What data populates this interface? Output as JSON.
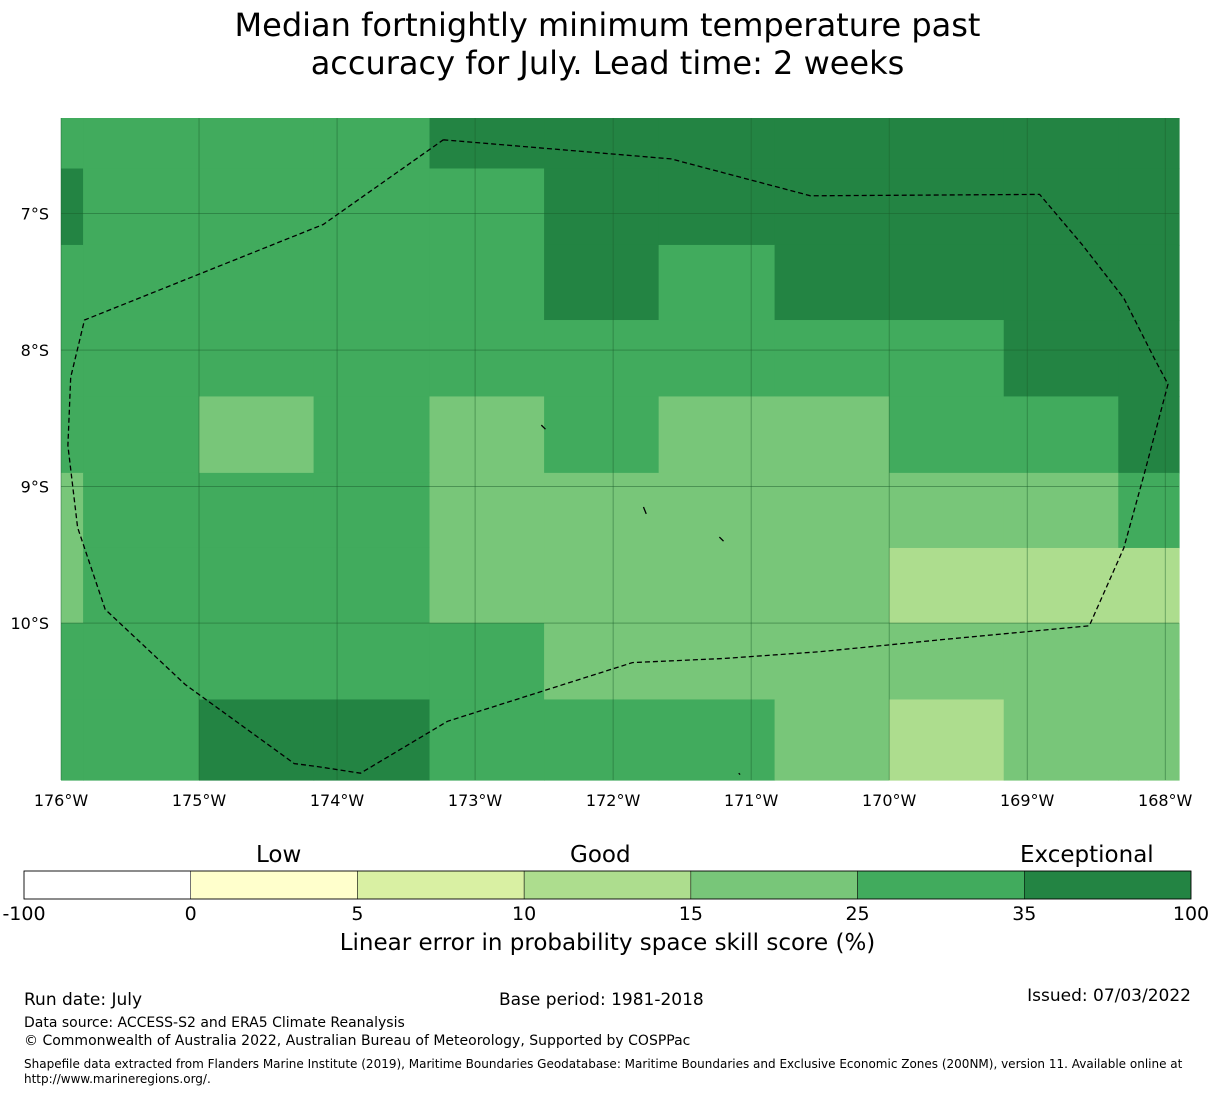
{
  "title": {
    "line1": "Median fortnightly minimum temperature past",
    "line2": "accuracy for July. Lead time: 2 weeks"
  },
  "map": {
    "lon_range": [
      -176,
      -167.9
    ],
    "lat_range": [
      -11.15,
      -6.3
    ],
    "lon_ticks": [
      {
        "value": -176,
        "label": "176°W"
      },
      {
        "value": -175,
        "label": "175°W"
      },
      {
        "value": -174,
        "label": "174°W"
      },
      {
        "value": -173,
        "label": "173°W"
      },
      {
        "value": -172,
        "label": "172°W"
      },
      {
        "value": -171,
        "label": "171°W"
      },
      {
        "value": -170,
        "label": "170°W"
      },
      {
        "value": -169,
        "label": "169°W"
      },
      {
        "value": -168,
        "label": "168°W"
      }
    ],
    "lat_ticks": [
      {
        "value": -7,
        "label": "7°S"
      },
      {
        "value": -8,
        "label": "8°S"
      },
      {
        "value": -9,
        "label": "9°S"
      },
      {
        "value": -10,
        "label": "10°S"
      }
    ],
    "grid_lines": true,
    "grid_cells_col_edges_lon": [
      -176,
      -175.84,
      -175,
      -174.17,
      -173.33,
      -172.5,
      -171.67,
      -170.83,
      -170,
      -169.17,
      -168.34,
      -167.9
    ],
    "grid_cells_row_edges_lat": [
      -6.3,
      -6.67,
      -7.23,
      -7.78,
      -8.34,
      -8.9,
      -9.45,
      -10.0,
      -10.56,
      -11.15
    ],
    "skill_class_grid": [
      [
        "25-35",
        "25-35",
        "25-35",
        "25-35",
        "35-100",
        "35-100",
        "35-100",
        "35-100",
        "35-100",
        "35-100",
        "35-100"
      ],
      [
        "35-100",
        "25-35",
        "25-35",
        "25-35",
        "25-35",
        "35-100",
        "35-100",
        "35-100",
        "35-100",
        "35-100",
        "35-100"
      ],
      [
        "25-35",
        "25-35",
        "25-35",
        "25-35",
        "25-35",
        "35-100",
        "25-35",
        "35-100",
        "35-100",
        "35-100",
        "35-100"
      ],
      [
        "25-35",
        "25-35",
        "25-35",
        "25-35",
        "25-35",
        "25-35",
        "25-35",
        "25-35",
        "25-35",
        "35-100",
        "35-100"
      ],
      [
        "25-35",
        "25-35",
        "15-25",
        "25-35",
        "15-25",
        "25-35",
        "15-25",
        "15-25",
        "25-35",
        "25-35",
        "35-100"
      ],
      [
        "15-25",
        "25-35",
        "25-35",
        "25-35",
        "15-25",
        "15-25",
        "15-25",
        "15-25",
        "15-25",
        "15-25",
        "25-35"
      ],
      [
        "15-25",
        "25-35",
        "25-35",
        "25-35",
        "15-25",
        "15-25",
        "15-25",
        "15-25",
        "10-15",
        "10-15",
        "10-15"
      ],
      [
        "25-35",
        "25-35",
        "25-35",
        "25-35",
        "25-35",
        "15-25",
        "15-25",
        "15-25",
        "15-25",
        "15-25",
        "15-25"
      ],
      [
        "25-35",
        "25-35",
        "35-100",
        "35-100",
        "25-35",
        "25-35",
        "25-35",
        "15-25",
        "10-15",
        "15-25",
        "15-25"
      ]
    ],
    "eez_boundary_lonlat": [
      [
        -173.23,
        -6.46
      ],
      [
        -171.58,
        -6.6
      ],
      [
        -170.57,
        -6.87
      ],
      [
        -168.91,
        -6.86
      ],
      [
        -168.6,
        -7.23
      ],
      [
        -168.3,
        -7.62
      ],
      [
        -168.08,
        -8.06
      ],
      [
        -167.98,
        -8.25
      ],
      [
        -168.15,
        -8.9
      ],
      [
        -168.3,
        -9.45
      ],
      [
        -168.55,
        -10.02
      ],
      [
        -169.6,
        -10.12
      ],
      [
        -170.5,
        -10.21
      ],
      [
        -171.2,
        -10.26
      ],
      [
        -171.86,
        -10.29
      ],
      [
        -173.2,
        -10.72
      ],
      [
        -173.83,
        -11.1
      ],
      [
        -174.15,
        -11.05
      ],
      [
        -174.31,
        -11.03
      ],
      [
        -175.1,
        -10.45
      ],
      [
        -175.68,
        -9.9
      ],
      [
        -175.88,
        -9.3
      ],
      [
        -175.95,
        -8.7
      ],
      [
        -175.93,
        -8.2
      ],
      [
        -175.83,
        -7.78
      ],
      [
        -174.1,
        -7.08
      ],
      [
        -173.23,
        -6.46
      ]
    ],
    "islands_lonlat": [
      [
        [
          -172.52,
          -8.55
        ],
        [
          -172.49,
          -8.58
        ]
      ],
      [
        [
          -171.78,
          -9.15
        ],
        [
          -171.76,
          -9.2
        ]
      ],
      [
        [
          -171.23,
          -9.37
        ],
        [
          -171.2,
          -9.4
        ]
      ],
      [
        [
          -171.09,
          -11.1
        ],
        [
          -171.08,
          -11.11
        ]
      ]
    ]
  },
  "colorbar": {
    "categories": [
      "Low",
      "Good",
      "Exceptional"
    ],
    "ticks": [
      "-100",
      "0",
      "5",
      "10",
      "15",
      "25",
      "35",
      "100"
    ],
    "classes": [
      {
        "range": "-100-0",
        "color": "#ffffff"
      },
      {
        "range": "0-5",
        "color": "#ffffcc"
      },
      {
        "range": "5-10",
        "color": "#d9f0a3"
      },
      {
        "range": "10-15",
        "color": "#addd8e"
      },
      {
        "range": "15-25",
        "color": "#78c679"
      },
      {
        "range": "25-35",
        "color": "#41ab5d"
      },
      {
        "range": "35-100",
        "color": "#238443"
      }
    ],
    "label": "Linear error in probability space skill score (%)"
  },
  "footer": {
    "run_date": "Run date: July",
    "base_period": "Base period: 1981-2018",
    "issued": "Issued: 07/03/2022",
    "data_source": "Data source: ACCESS-S2 and ERA5 Climate Reanalysis",
    "copyright": "© Commonwealth of Australia 2022, Australian Bureau of Meteorology, Supported by COSPPac",
    "shapefile": "Shapefile data extracted from Flanders Marine Institute (2019), Maritime Boundaries Geodatabase: Maritime Boundaries and Exclusive Economic Zones (200NM), version 11. Available online at http://www.marineregions.org/."
  }
}
